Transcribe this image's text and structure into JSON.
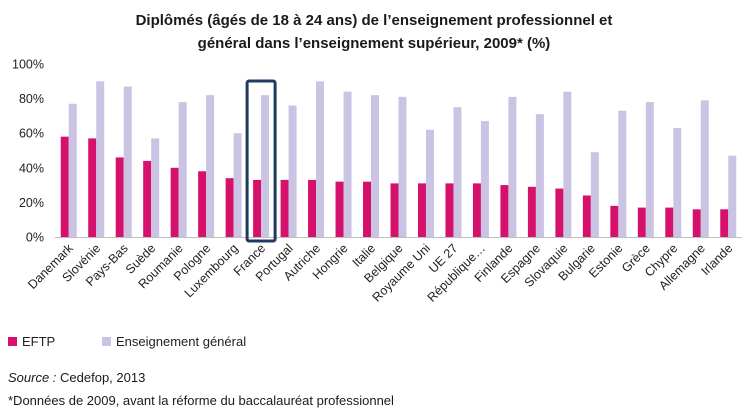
{
  "chart_data": {
    "type": "bar",
    "title_lines": [
      "Diplômés (âgés de 18 à 24 ans) de l’enseignement professionnel et",
      "général dans l’enseignement supérieur, 2009* (%)"
    ],
    "ylim": [
      0,
      100
    ],
    "yticks": [
      0,
      20,
      40,
      60,
      80,
      100
    ],
    "ytick_labels": [
      "0%",
      "20%",
      "40%",
      "60%",
      "80%",
      "100%"
    ],
    "grid": false,
    "legend_position": "bottom-left",
    "highlighted_category": "France",
    "categories": [
      "Danemark",
      "Slovénie",
      "Pays-Bas",
      "Suède",
      "Roumanie",
      "Pologne",
      "Luxembourg",
      "France",
      "Portugal",
      "Autriche",
      "Hongrie",
      "Italie",
      "Belgique",
      "Royaume Uni",
      "UE 27",
      "République…",
      "Finlande",
      "Espagne",
      "Slovaquie",
      "Bulgarie",
      "Estonie",
      "Grèce",
      "Chypre",
      "Allemagne",
      "Irlande"
    ],
    "series": [
      {
        "name": "EFTP",
        "color": "#d6116c",
        "values": [
          58,
          57,
          46,
          44,
          40,
          38,
          34,
          33,
          33,
          33,
          32,
          32,
          31,
          31,
          31,
          31,
          30,
          29,
          28,
          24,
          18,
          17,
          17,
          16,
          16
        ]
      },
      {
        "name": "Enseignement général",
        "color": "#cbc3e3",
        "values": [
          77,
          90,
          87,
          57,
          78,
          82,
          60,
          82,
          76,
          90,
          84,
          82,
          81,
          62,
          75,
          67,
          81,
          71,
          84,
          49,
          73,
          78,
          63,
          79,
          47
        ]
      }
    ],
    "highlight_color": "#1f3a5f"
  },
  "source": {
    "label": "Source :",
    "text": " Cedefop, 2013"
  },
  "footnote": "*Données de 2009, avant la réforme du baccalauréat professionnel"
}
